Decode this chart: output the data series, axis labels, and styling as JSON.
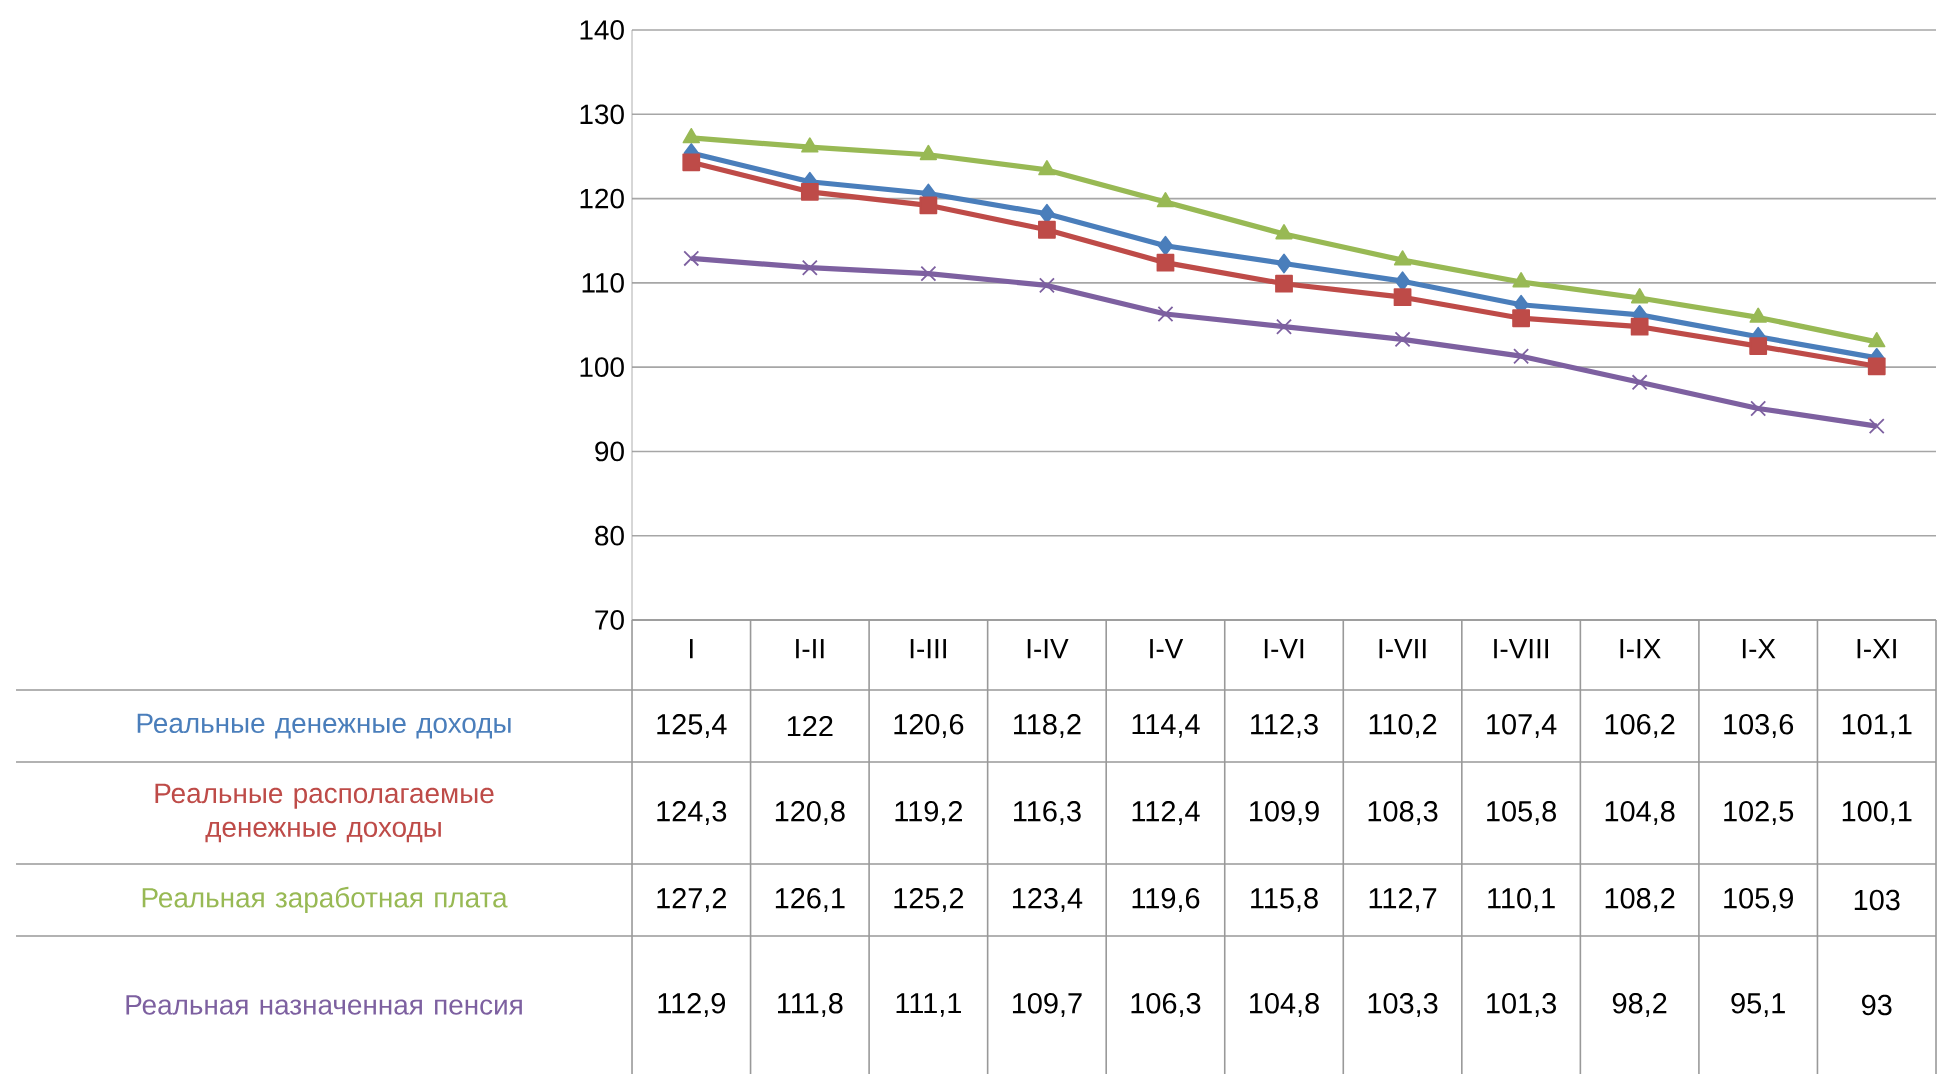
{
  "chart_data": {
    "type": "line",
    "categories": [
      "I",
      "I-II",
      "I-III",
      "I-IV",
      "I-V",
      "I-VI",
      "I-VII",
      "I-VIII",
      "I-IX",
      "I-X",
      "I-XI"
    ],
    "series": [
      {
        "name": "Реальные денежные доходы",
        "color": "#4a7ebb",
        "marker": "diamond",
        "values": [
          125.4,
          122,
          120.6,
          118.2,
          114.4,
          112.3,
          110.2,
          107.4,
          106.2,
          103.6,
          101.1
        ],
        "value_labels": [
          "125,4",
          "122",
          "120,6",
          "118,2",
          "114,4",
          "112,3",
          "110,2",
          "107,4",
          "106,2",
          "103,6",
          "101,1"
        ]
      },
      {
        "name": "Реальные располагаемые денежные доходы",
        "color": "#be4b48",
        "marker": "square",
        "values": [
          124.3,
          120.8,
          119.2,
          116.3,
          112.4,
          109.9,
          108.3,
          105.8,
          104.8,
          102.5,
          100.1
        ],
        "value_labels": [
          "124,3",
          "120,8",
          "119,2",
          "116,3",
          "112,4",
          "109,9",
          "108,3",
          "105,8",
          "104,8",
          "102,5",
          "100,1"
        ]
      },
      {
        "name": "Реальная заработная плата",
        "color": "#98b954",
        "marker": "triangle",
        "values": [
          127.2,
          126.1,
          125.2,
          123.4,
          119.6,
          115.8,
          112.7,
          110.1,
          108.2,
          105.9,
          103
        ],
        "value_labels": [
          "127,2",
          "126,1",
          "125,2",
          "123,4",
          "119,6",
          "115,8",
          "112,7",
          "110,1",
          "108,2",
          "105,9",
          "103"
        ]
      },
      {
        "name": "Реальная назначенная пенсия",
        "color": "#7d60a0",
        "marker": "cross",
        "values": [
          112.9,
          111.8,
          111.1,
          109.7,
          106.3,
          104.8,
          103.3,
          101.3,
          98.2,
          95.1,
          93
        ],
        "value_labels": [
          "112,9",
          "111,8",
          "111,1",
          "109,7",
          "106,3",
          "104,8",
          "103,3",
          "101,3",
          "98,2",
          "95,1",
          "93"
        ]
      }
    ],
    "ylim": [
      70,
      140
    ],
    "yticks": [
      70,
      80,
      90,
      100,
      110,
      120,
      130,
      140
    ],
    "grid": "y",
    "line_style": "solid"
  }
}
